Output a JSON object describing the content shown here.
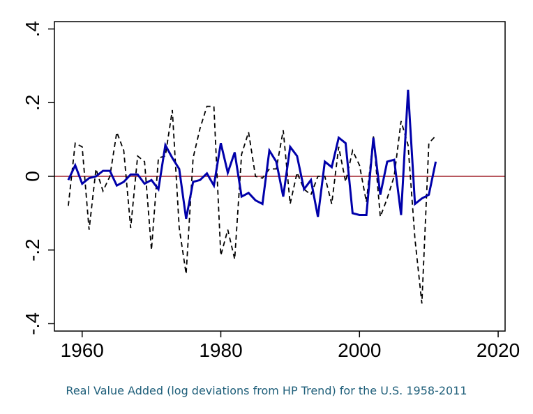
{
  "caption": "Real Value Added (log deviations from HP Trend) for the U.S. 1958-2011",
  "colors": {
    "solid_series": "#0000aa",
    "dashed_series": "#000000",
    "zero_line": "#a0202a",
    "axis": "#000000"
  },
  "chart_data": {
    "type": "line",
    "title": "",
    "xlabel": "",
    "ylabel": "",
    "xlim": [
      1956,
      2021
    ],
    "ylim": [
      -0.42,
      0.42
    ],
    "x_ticks": [
      1960,
      1980,
      2000,
      2020
    ],
    "x_tick_labels": [
      "1960",
      "1980",
      "2000",
      "2020"
    ],
    "y_ticks": [
      -0.4,
      -0.2,
      0,
      0.2,
      0.4
    ],
    "y_tick_labels": [
      "-.4",
      "-.2",
      "0",
      ".2",
      ".4"
    ],
    "reference_line": {
      "y": 0
    },
    "x": [
      1958,
      1959,
      1960,
      1961,
      1962,
      1963,
      1964,
      1965,
      1966,
      1967,
      1968,
      1969,
      1970,
      1971,
      1972,
      1973,
      1974,
      1975,
      1976,
      1977,
      1978,
      1979,
      1980,
      1981,
      1982,
      1983,
      1984,
      1985,
      1986,
      1987,
      1988,
      1989,
      1990,
      1991,
      1992,
      1993,
      1994,
      1995,
      1996,
      1997,
      1998,
      1999,
      2000,
      2001,
      2002,
      2003,
      2004,
      2005,
      2006,
      2007,
      2008,
      2009,
      2010,
      2011
    ],
    "series": [
      {
        "style": "solid",
        "values": [
          -0.01,
          0.03,
          -0.02,
          -0.005,
          0.0,
          0.015,
          0.015,
          -0.025,
          -0.015,
          0.005,
          0.005,
          -0.02,
          -0.01,
          -0.035,
          0.085,
          0.05,
          0.02,
          -0.115,
          -0.015,
          -0.01,
          0.008,
          -0.025,
          0.09,
          0.01,
          0.065,
          -0.055,
          -0.045,
          -0.065,
          -0.075,
          0.07,
          0.04,
          -0.055,
          0.08,
          0.055,
          -0.035,
          -0.01,
          -0.11,
          0.04,
          0.025,
          0.105,
          0.09,
          -0.1,
          -0.105,
          -0.105,
          0.105,
          -0.05,
          0.04,
          0.045,
          -0.105,
          0.235,
          -0.075,
          -0.06,
          -0.05,
          0.04
        ]
      },
      {
        "style": "dashed",
        "values": [
          -0.08,
          0.09,
          0.08,
          -0.145,
          0.02,
          -0.04,
          0.0,
          0.12,
          0.07,
          -0.14,
          0.055,
          0.04,
          -0.2,
          0.05,
          0.055,
          0.18,
          -0.14,
          -0.265,
          0.05,
          0.13,
          0.19,
          0.19,
          -0.215,
          -0.145,
          -0.225,
          0.06,
          0.12,
          0.0,
          -0.005,
          0.02,
          0.02,
          0.125,
          -0.075,
          0.01,
          -0.035,
          -0.05,
          0.0,
          0.0,
          -0.075,
          0.08,
          -0.015,
          0.07,
          0.03,
          -0.07,
          0.11,
          -0.11,
          -0.06,
          0.0,
          0.15,
          0.085,
          -0.17,
          -0.345,
          0.09,
          0.11
        ]
      }
    ]
  }
}
